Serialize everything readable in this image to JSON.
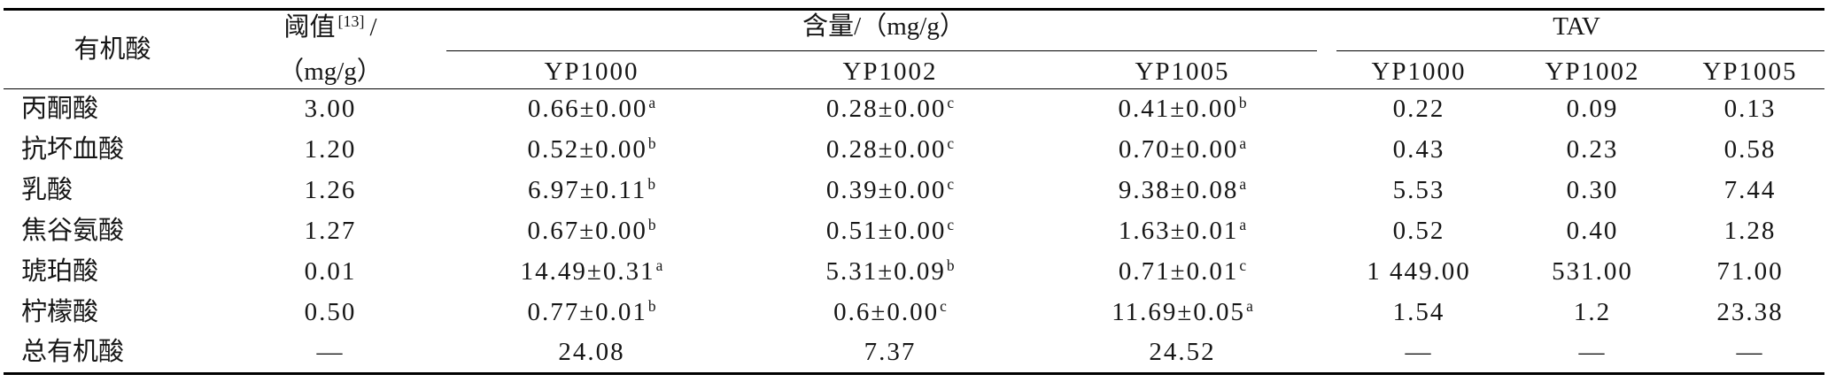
{
  "table": {
    "header": {
      "organic_acid": "有机酸",
      "threshold": {
        "label": "阈值",
        "ref": "[13]",
        "slash": "/",
        "unit": "（mg/g）"
      },
      "content": "含量/（mg/g）",
      "tav": "TAV",
      "content_samples": [
        "YP1000",
        "YP1002",
        "YP1005"
      ],
      "tav_samples": [
        "YP1000",
        "YP1002",
        "YP1005"
      ]
    },
    "rows": [
      {
        "name": "丙酮酸",
        "threshold": "3.00",
        "content": [
          {
            "value": "0.66±0.00",
            "sig": "a"
          },
          {
            "value": "0.28±0.00",
            "sig": "c"
          },
          {
            "value": "0.41±0.00",
            "sig": "b"
          }
        ],
        "tav": [
          "0.22",
          "0.09",
          "0.13"
        ]
      },
      {
        "name": "抗坏血酸",
        "threshold": "1.20",
        "content": [
          {
            "value": "0.52±0.00",
            "sig": "b"
          },
          {
            "value": "0.28±0.00",
            "sig": "c"
          },
          {
            "value": "0.70±0.00",
            "sig": "a"
          }
        ],
        "tav": [
          "0.43",
          "0.23",
          "0.58"
        ]
      },
      {
        "name": "乳酸",
        "threshold": "1.26",
        "content": [
          {
            "value": "6.97±0.11",
            "sig": "b"
          },
          {
            "value": "0.39±0.00",
            "sig": "c"
          },
          {
            "value": "9.38±0.08",
            "sig": "a"
          }
        ],
        "tav": [
          "5.53",
          "0.30",
          "7.44"
        ]
      },
      {
        "name": "焦谷氨酸",
        "threshold": "1.27",
        "content": [
          {
            "value": "0.67±0.00",
            "sig": "b"
          },
          {
            "value": "0.51±0.00",
            "sig": "c"
          },
          {
            "value": "1.63±0.01",
            "sig": "a"
          }
        ],
        "tav": [
          "0.52",
          "0.40",
          "1.28"
        ]
      },
      {
        "name": "琥珀酸",
        "threshold": "0.01",
        "content": [
          {
            "value": "14.49±0.31",
            "sig": "a"
          },
          {
            "value": "5.31±0.09",
            "sig": "b"
          },
          {
            "value": "0.71±0.01",
            "sig": "c"
          }
        ],
        "tav": [
          "1 449.00",
          "531.00",
          "71.00"
        ]
      },
      {
        "name": "柠檬酸",
        "threshold": "0.50",
        "content": [
          {
            "value": "0.77±0.01",
            "sig": "b"
          },
          {
            "value": "0.6±0.00",
            "sig": "c"
          },
          {
            "value": "11.69±0.05",
            "sig": "a"
          }
        ],
        "tav": [
          "1.54",
          "1.2",
          "23.38"
        ]
      },
      {
        "name": "总有机酸",
        "threshold": "—",
        "content": [
          {
            "value": "24.08"
          },
          {
            "value": "7.37"
          },
          {
            "value": "24.52"
          }
        ],
        "tav": [
          "—",
          "—",
          "—"
        ]
      }
    ]
  }
}
